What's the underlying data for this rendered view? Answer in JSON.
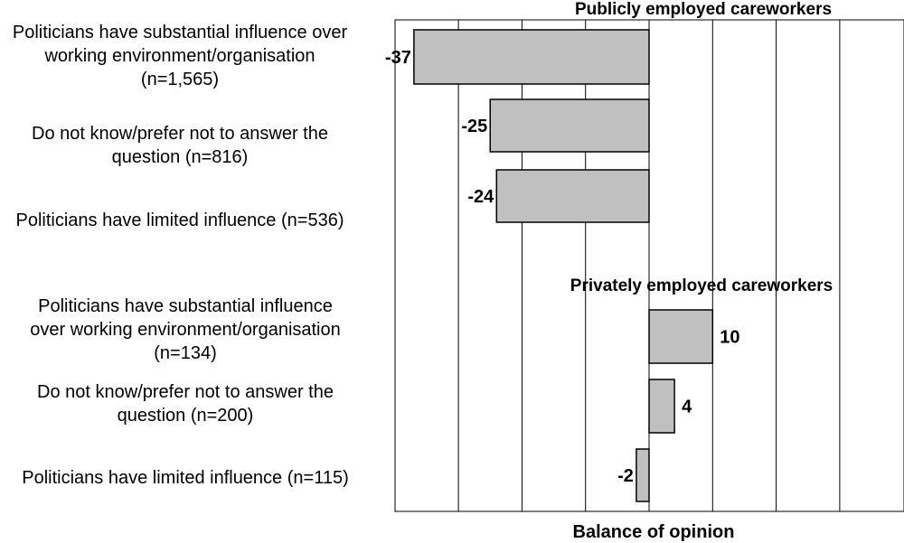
{
  "chart_data": {
    "type": "bar",
    "orientation": "horizontal",
    "xlabel": "Balance of opinion",
    "xlim": [
      -40,
      40
    ],
    "grid": true,
    "bar_color": "#c0c0c0",
    "groups": [
      {
        "title": "Publicly employed careworkers",
        "bars": [
          {
            "label_lines": [
              "Politicians have substantial influence over",
              "working environment/organisation",
              "(n=1,565)"
            ],
            "value": -37,
            "value_label": "-37"
          },
          {
            "label_lines": [
              "Do not know/prefer not to answer the",
              "question (n=816)"
            ],
            "value": -25,
            "value_label": "-25"
          },
          {
            "label_lines": [
              "Politicians have limited influence (n=536)"
            ],
            "value": -24,
            "value_label": "-24"
          }
        ]
      },
      {
        "title": "Privately employed careworkers",
        "bars": [
          {
            "label_lines": [
              "Politicians have substantial influence",
              "over working environment/organisation",
              "(n=134)"
            ],
            "value": 10,
            "value_label": "10"
          },
          {
            "label_lines": [
              "Do not know/prefer not to answer the",
              "question (n=200)"
            ],
            "value": 4,
            "value_label": "4"
          },
          {
            "label_lines": [
              "Politicians have limited influence (n=115)"
            ],
            "value": -2,
            "value_label": "-2"
          }
        ]
      }
    ]
  }
}
